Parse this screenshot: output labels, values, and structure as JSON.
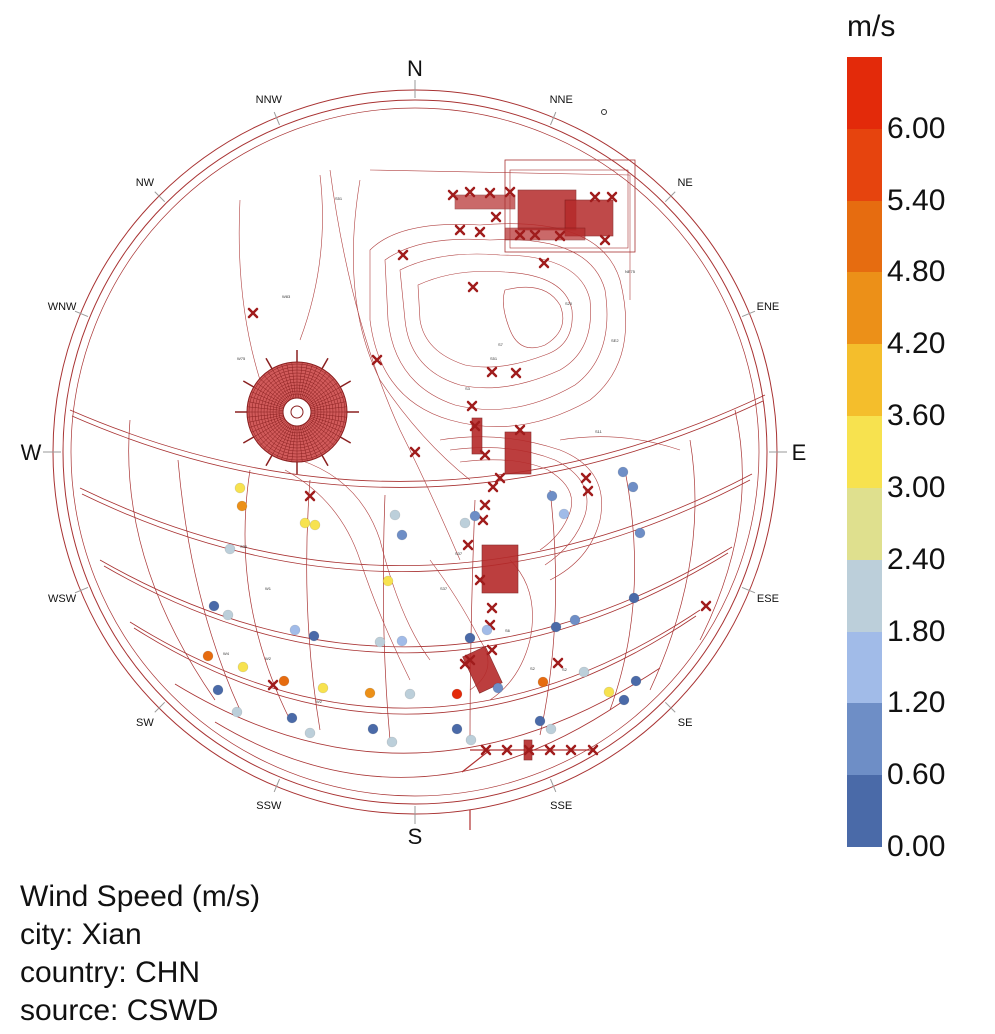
{
  "chart_data": {
    "type": "scatter",
    "title": "Wind Speed (m/s)",
    "metadata": {
      "city": "Xian",
      "country": "CHN",
      "source": "CSWD"
    },
    "directions": [
      "N",
      "NNE",
      "NE",
      "ENE",
      "E",
      "ESE",
      "SE",
      "SSE",
      "S",
      "SSW",
      "SW",
      "WSW",
      "W",
      "WNW",
      "NW",
      "NNW"
    ],
    "color_scale": {
      "unit": "m/s",
      "min": 0.0,
      "max": 6.6,
      "ticks": [
        "6.00",
        "5.40",
        "4.80",
        "4.20",
        "3.60",
        "3.00",
        "2.40",
        "1.80",
        "1.20",
        "0.60",
        "0.00"
      ],
      "colors": [
        "#4a6aa8",
        "#6e8ec6",
        "#a1bbe8",
        "#bccfda",
        "#dfe08e",
        "#f7e24f",
        "#f4be2c",
        "#ec9018",
        "#e66c10",
        "#e6440e",
        "#e32a0a"
      ]
    },
    "points": [
      {
        "dir": "W-WSW",
        "level": 1,
        "speed": 3.2
      },
      {
        "dir": "WSW",
        "level": 1,
        "speed": 4.6
      },
      {
        "dir": "WSW",
        "level": 2,
        "speed": 2.0
      },
      {
        "dir": "SW",
        "level": 2,
        "speed": 3.3
      },
      {
        "dir": "SW",
        "level": 2,
        "speed": 3.3
      },
      {
        "dir": "SSW",
        "level": 1,
        "speed": 1.8
      },
      {
        "dir": "SSW",
        "level": 1,
        "speed": 1.1
      },
      {
        "dir": "S",
        "level": 2,
        "speed": 3.4
      },
      {
        "dir": "SSE",
        "level": 1,
        "speed": 1.9
      },
      {
        "dir": "SSE",
        "level": 1,
        "speed": 1.1
      },
      {
        "dir": "SE",
        "level": 1,
        "speed": 1.0
      },
      {
        "dir": "SE",
        "level": 1,
        "speed": 1.2
      },
      {
        "dir": "ESE",
        "level": 1,
        "speed": 0.9
      },
      {
        "dir": "ESE",
        "level": 1,
        "speed": 1.0
      },
      {
        "dir": "SW",
        "level": 3,
        "speed": 0.4
      },
      {
        "dir": "SW",
        "level": 3,
        "speed": 2.0
      },
      {
        "dir": "SSW",
        "level": 3,
        "speed": 1.2
      },
      {
        "dir": "SSW",
        "level": 3,
        "speed": 0.3
      },
      {
        "dir": "S",
        "level": 3,
        "speed": 2.0
      },
      {
        "dir": "S",
        "level": 3,
        "speed": 1.2
      },
      {
        "dir": "SSE",
        "level": 3,
        "speed": 0.3
      },
      {
        "dir": "SSE",
        "level": 3,
        "speed": 1.2
      },
      {
        "dir": "SE",
        "level": 3,
        "speed": 0.4
      },
      {
        "dir": "SE",
        "level": 3,
        "speed": 1.0
      },
      {
        "dir": "ESE",
        "level": 3,
        "speed": 0.5
      },
      {
        "dir": "SW",
        "level": 4,
        "speed": 4.9
      },
      {
        "dir": "SW",
        "level": 4,
        "speed": 3.3
      },
      {
        "dir": "SSW",
        "level": 4,
        "speed": 4.8
      },
      {
        "dir": "SSW",
        "level": 4,
        "speed": 3.4
      },
      {
        "dir": "S",
        "level": 4,
        "speed": 4.6
      },
      {
        "dir": "S",
        "level": 4,
        "speed": 1.9
      },
      {
        "dir": "SSE",
        "level": 4,
        "speed": 6.4
      },
      {
        "dir": "SSE",
        "level": 4,
        "speed": 1.1
      },
      {
        "dir": "SE",
        "level": 4,
        "speed": 4.8
      },
      {
        "dir": "SE",
        "level": 4,
        "speed": 1.9
      },
      {
        "dir": "ESE",
        "level": 4,
        "speed": 3.4
      },
      {
        "dir": "ESE",
        "level": 4,
        "speed": 0.4
      },
      {
        "dir": "SW",
        "level": 5,
        "speed": 0.3
      },
      {
        "dir": "SW",
        "level": 5,
        "speed": 1.9
      },
      {
        "dir": "SSW",
        "level": 5,
        "speed": 0.4
      },
      {
        "dir": "SSW",
        "level": 5,
        "speed": 1.9
      },
      {
        "dir": "S",
        "level": 5,
        "speed": 0.3
      },
      {
        "dir": "S",
        "level": 5,
        "speed": 1.9
      },
      {
        "dir": "SSE",
        "level": 5,
        "speed": 0.3
      },
      {
        "dir": "SSE",
        "level": 5,
        "speed": 1.9
      },
      {
        "dir": "SE",
        "level": 5,
        "speed": 0.3
      },
      {
        "dir": "SE",
        "level": 5,
        "speed": 1.9
      },
      {
        "dir": "SE",
        "level": 5,
        "speed": 0.4
      },
      {
        "dir": "ESE",
        "level": 5,
        "speed": 0.9
      }
    ]
  }
}
